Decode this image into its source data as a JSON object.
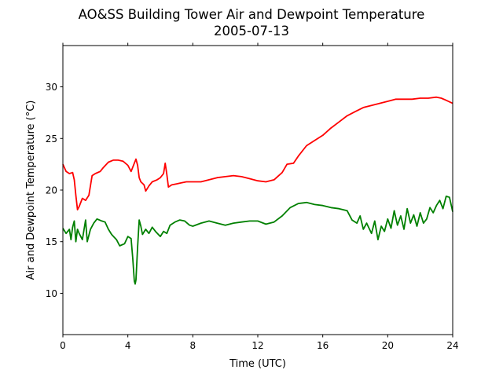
{
  "chart_data": {
    "type": "line",
    "title": "AO&SS Building Tower Air and Dewpoint Temperature",
    "subtitle": "2005-07-13",
    "xlabel": "Time (UTC)",
    "ylabel": "Air and Dewpoint Temperature (°C)",
    "xlim": [
      0,
      24
    ],
    "ylim": [
      6,
      34
    ],
    "xticks": [
      0,
      4,
      8,
      12,
      16,
      20,
      24
    ],
    "yticks": [
      10,
      15,
      20,
      25,
      30
    ],
    "grid": false,
    "legend": "none",
    "series": [
      {
        "color": "#ff0000",
        "points": [
          [
            0,
            22.5
          ],
          [
            0.2,
            21.8
          ],
          [
            0.4,
            21.6
          ],
          [
            0.6,
            21.7
          ],
          [
            0.7,
            21.0
          ],
          [
            0.8,
            19.5
          ],
          [
            0.9,
            18.1
          ],
          [
            1.0,
            18.4
          ],
          [
            1.2,
            19.2
          ],
          [
            1.4,
            19.0
          ],
          [
            1.6,
            19.5
          ],
          [
            1.8,
            21.4
          ],
          [
            2.0,
            21.6
          ],
          [
            2.3,
            21.8
          ],
          [
            2.5,
            22.2
          ],
          [
            2.8,
            22.7
          ],
          [
            3.1,
            22.9
          ],
          [
            3.4,
            22.9
          ],
          [
            3.7,
            22.8
          ],
          [
            4.0,
            22.4
          ],
          [
            4.2,
            21.8
          ],
          [
            4.4,
            22.6
          ],
          [
            4.5,
            23.0
          ],
          [
            4.6,
            22.4
          ],
          [
            4.7,
            21.2
          ],
          [
            4.8,
            20.8
          ],
          [
            5.0,
            20.5
          ],
          [
            5.1,
            19.9
          ],
          [
            5.3,
            20.4
          ],
          [
            5.5,
            20.8
          ],
          [
            5.8,
            21.0
          ],
          [
            6.0,
            21.2
          ],
          [
            6.2,
            21.6
          ],
          [
            6.3,
            22.6
          ],
          [
            6.4,
            21.5
          ],
          [
            6.5,
            20.3
          ],
          [
            6.7,
            20.5
          ],
          [
            7.0,
            20.6
          ],
          [
            7.3,
            20.7
          ],
          [
            7.6,
            20.8
          ],
          [
            8.0,
            20.8
          ],
          [
            8.5,
            20.8
          ],
          [
            9.0,
            21.0
          ],
          [
            9.5,
            21.2
          ],
          [
            10.0,
            21.3
          ],
          [
            10.5,
            21.4
          ],
          [
            11.0,
            21.3
          ],
          [
            11.5,
            21.1
          ],
          [
            12.0,
            20.9
          ],
          [
            12.5,
            20.8
          ],
          [
            13.0,
            21.0
          ],
          [
            13.5,
            21.7
          ],
          [
            13.8,
            22.5
          ],
          [
            14.2,
            22.6
          ],
          [
            14.5,
            23.3
          ],
          [
            15.0,
            24.3
          ],
          [
            15.5,
            24.8
          ],
          [
            16.0,
            25.3
          ],
          [
            16.5,
            26.0
          ],
          [
            17.0,
            26.6
          ],
          [
            17.5,
            27.2
          ],
          [
            18.0,
            27.6
          ],
          [
            18.5,
            28.0
          ],
          [
            19.0,
            28.2
          ],
          [
            19.5,
            28.4
          ],
          [
            20.0,
            28.6
          ],
          [
            20.5,
            28.8
          ],
          [
            21.0,
            28.8
          ],
          [
            21.5,
            28.8
          ],
          [
            22.0,
            28.9
          ],
          [
            22.5,
            28.9
          ],
          [
            23.0,
            29.0
          ],
          [
            23.3,
            28.9
          ],
          [
            23.6,
            28.7
          ],
          [
            24.0,
            28.4
          ]
        ]
      },
      {
        "color": "#008000",
        "points": [
          [
            0,
            16.3
          ],
          [
            0.2,
            15.8
          ],
          [
            0.4,
            16.2
          ],
          [
            0.5,
            15.2
          ],
          [
            0.6,
            16.4
          ],
          [
            0.7,
            17.0
          ],
          [
            0.8,
            15.0
          ],
          [
            0.9,
            16.2
          ],
          [
            1.0,
            15.8
          ],
          [
            1.2,
            15.2
          ],
          [
            1.4,
            17.1
          ],
          [
            1.5,
            15.0
          ],
          [
            1.7,
            16.2
          ],
          [
            1.9,
            16.8
          ],
          [
            2.1,
            17.2
          ],
          [
            2.4,
            17.0
          ],
          [
            2.6,
            16.9
          ],
          [
            2.8,
            16.2
          ],
          [
            3.0,
            15.7
          ],
          [
            3.3,
            15.2
          ],
          [
            3.5,
            14.6
          ],
          [
            3.8,
            14.8
          ],
          [
            4.0,
            15.5
          ],
          [
            4.2,
            15.3
          ],
          [
            4.3,
            13.4
          ],
          [
            4.4,
            11.2
          ],
          [
            4.45,
            10.9
          ],
          [
            4.5,
            11.3
          ],
          [
            4.6,
            14.5
          ],
          [
            4.7,
            17.1
          ],
          [
            4.8,
            16.5
          ],
          [
            4.9,
            15.7
          ],
          [
            5.1,
            16.2
          ],
          [
            5.3,
            15.8
          ],
          [
            5.5,
            16.4
          ],
          [
            5.7,
            16.0
          ],
          [
            6.0,
            15.5
          ],
          [
            6.2,
            16.0
          ],
          [
            6.4,
            15.8
          ],
          [
            6.6,
            16.6
          ],
          [
            6.9,
            16.9
          ],
          [
            7.2,
            17.1
          ],
          [
            7.5,
            17.0
          ],
          [
            7.8,
            16.6
          ],
          [
            8.0,
            16.5
          ],
          [
            8.5,
            16.8
          ],
          [
            9.0,
            17.0
          ],
          [
            9.5,
            16.8
          ],
          [
            10.0,
            16.6
          ],
          [
            10.5,
            16.8
          ],
          [
            11.0,
            16.9
          ],
          [
            11.5,
            17.0
          ],
          [
            12.0,
            17.0
          ],
          [
            12.5,
            16.7
          ],
          [
            13.0,
            16.9
          ],
          [
            13.5,
            17.5
          ],
          [
            14.0,
            18.3
          ],
          [
            14.5,
            18.7
          ],
          [
            15.0,
            18.8
          ],
          [
            15.5,
            18.6
          ],
          [
            16.0,
            18.5
          ],
          [
            16.5,
            18.3
          ],
          [
            17.0,
            18.2
          ],
          [
            17.5,
            18.0
          ],
          [
            17.8,
            17.1
          ],
          [
            18.1,
            16.8
          ],
          [
            18.3,
            17.5
          ],
          [
            18.5,
            16.2
          ],
          [
            18.7,
            16.8
          ],
          [
            19.0,
            15.8
          ],
          [
            19.2,
            17.0
          ],
          [
            19.4,
            15.2
          ],
          [
            19.6,
            16.5
          ],
          [
            19.8,
            16.0
          ],
          [
            20.0,
            17.2
          ],
          [
            20.2,
            16.3
          ],
          [
            20.4,
            18.0
          ],
          [
            20.6,
            16.6
          ],
          [
            20.8,
            17.5
          ],
          [
            21.0,
            16.2
          ],
          [
            21.2,
            18.2
          ],
          [
            21.4,
            16.8
          ],
          [
            21.6,
            17.6
          ],
          [
            21.8,
            16.5
          ],
          [
            22.0,
            17.8
          ],
          [
            22.2,
            16.8
          ],
          [
            22.4,
            17.2
          ],
          [
            22.6,
            18.3
          ],
          [
            22.8,
            17.8
          ],
          [
            23.0,
            18.5
          ],
          [
            23.2,
            19.0
          ],
          [
            23.4,
            18.2
          ],
          [
            23.6,
            19.4
          ],
          [
            23.8,
            19.3
          ],
          [
            24.0,
            17.9
          ]
        ]
      }
    ]
  }
}
